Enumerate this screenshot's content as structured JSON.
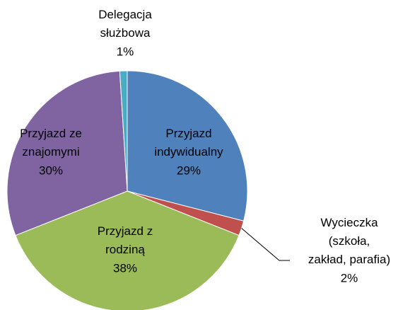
{
  "chart_data": {
    "type": "pie",
    "categories": [
      "Przyjazd indywidualny",
      "Wycieczka (szkoła, zakład, parafia)",
      "Przyjazd z rodziną",
      "Przyjazd ze znajomymi",
      "Delegacja służbowa"
    ],
    "values": [
      29,
      2,
      38,
      30,
      1
    ],
    "value_labels": [
      "29%",
      "2%",
      "38%",
      "30%",
      "1%"
    ],
    "colors": [
      "#4f81bd",
      "#c0504d",
      "#9bbb59",
      "#8064a2",
      "#4bacc6"
    ]
  }
}
